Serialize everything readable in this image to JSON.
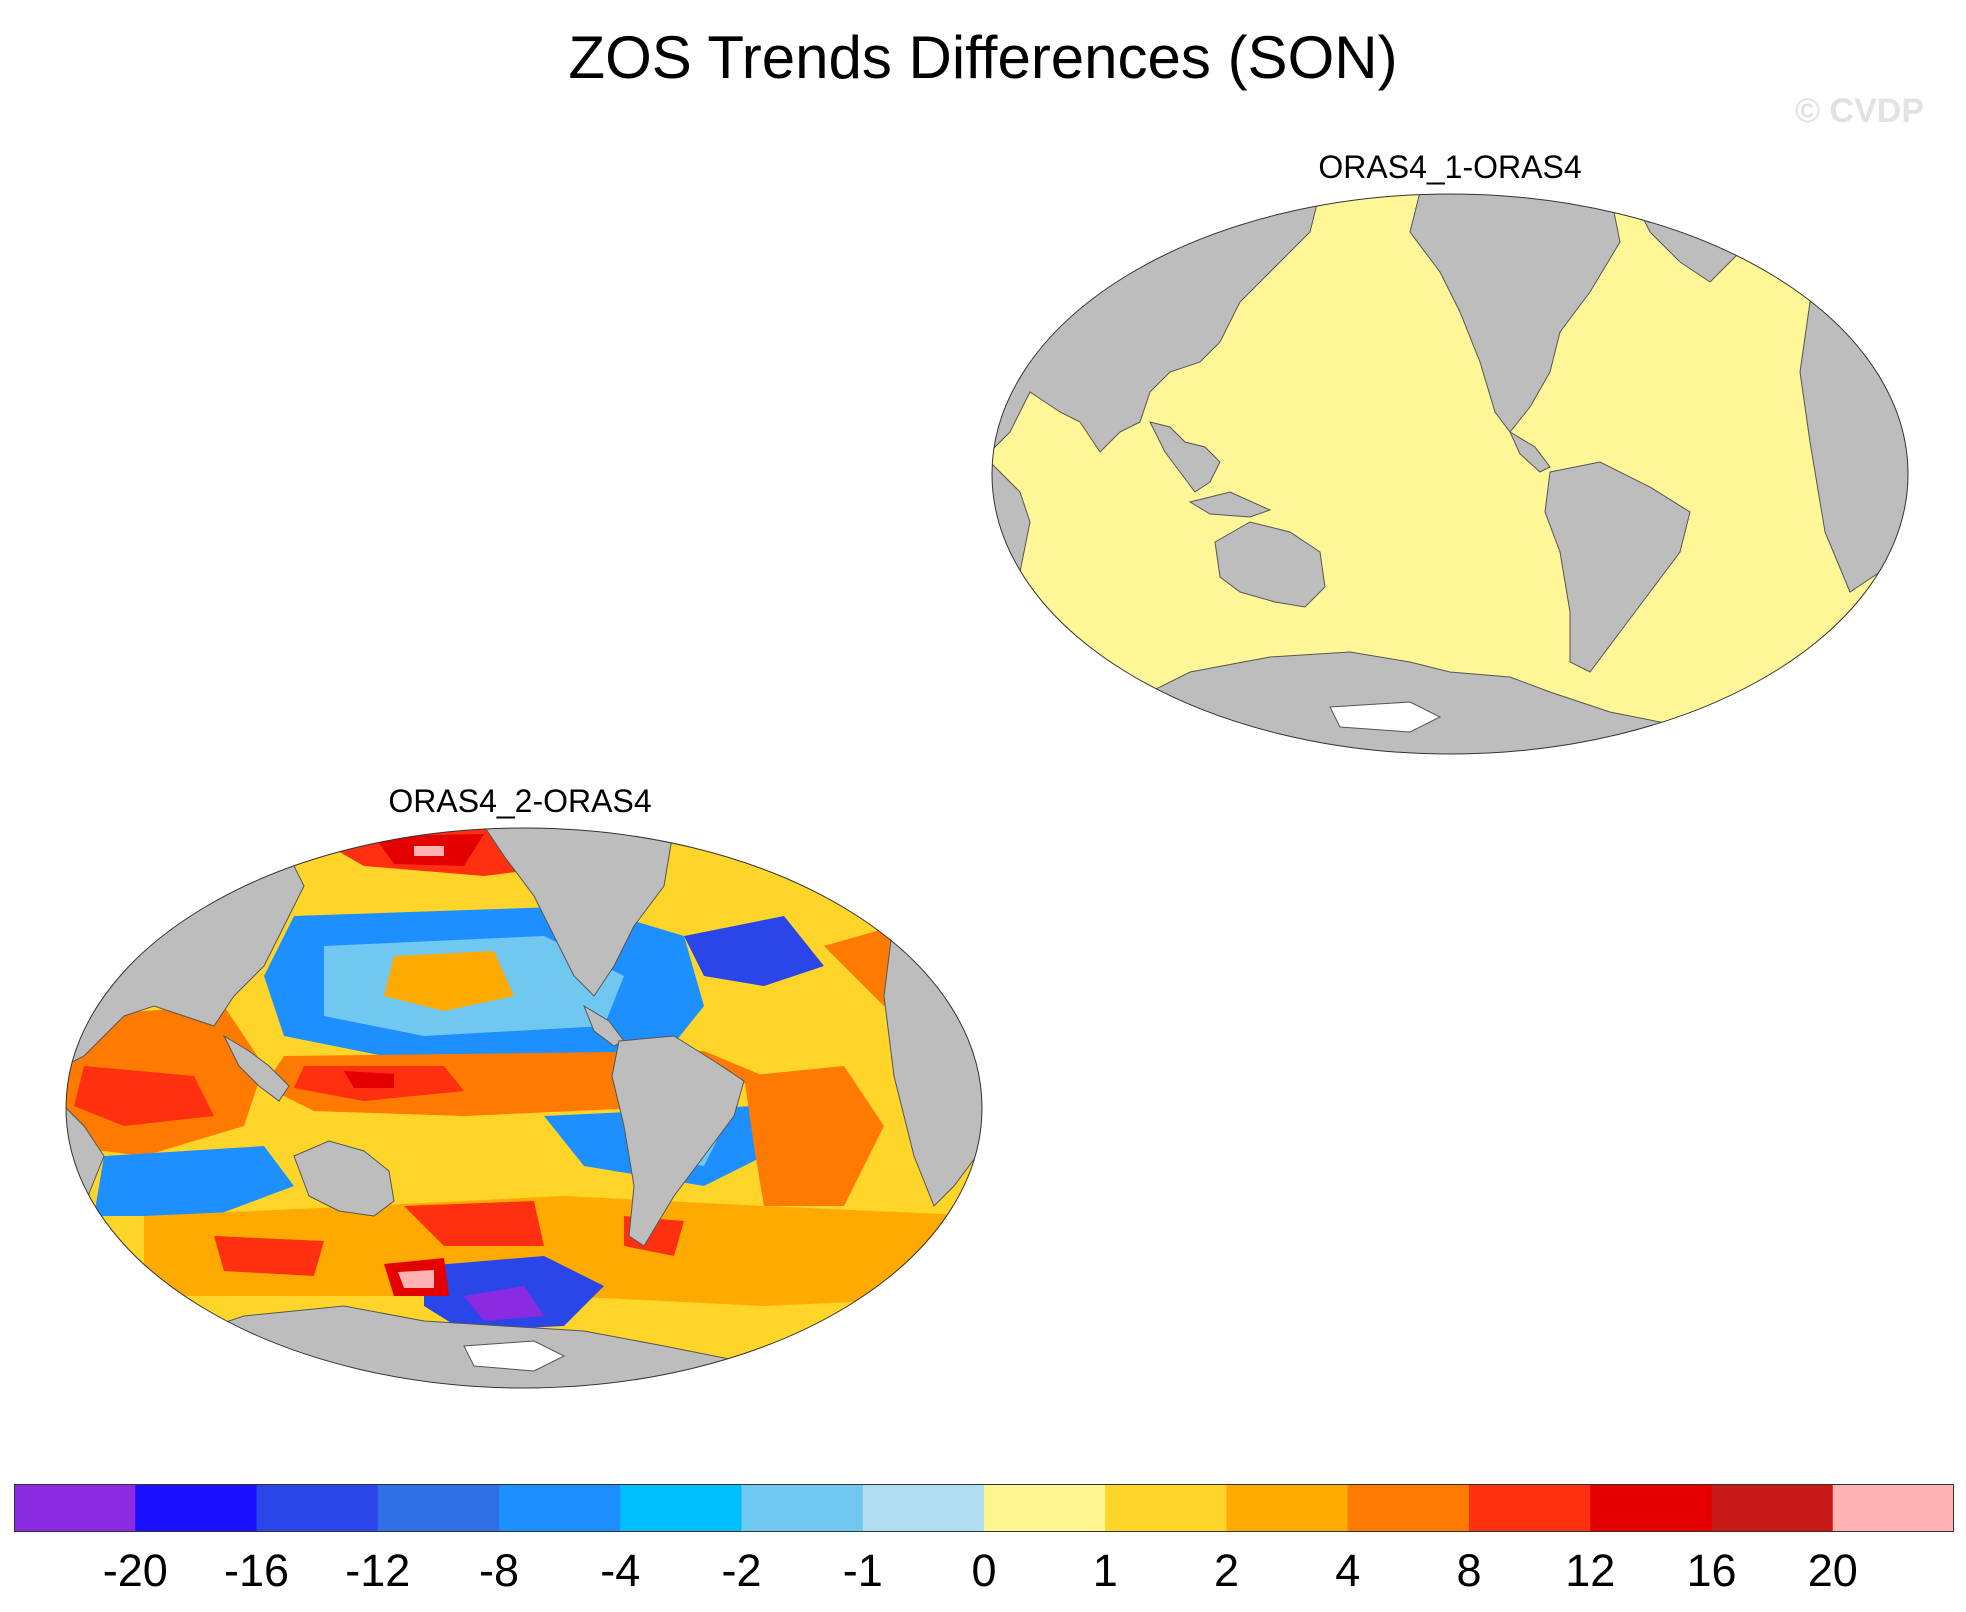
{
  "title": "ZOS Trends Differences (SON)",
  "watermark": "© CVDP",
  "panels": [
    {
      "label": "ORAS4_1-ORAS4",
      "description_color": "#fff797"
    },
    {
      "label": "ORAS4_2-ORAS4"
    }
  ],
  "colors": {
    "land": "#bdbdbd",
    "ocean_uniform": "#fff797",
    "ice": "#ffffff"
  },
  "colorbar": {
    "colors": [
      "#8a2be2",
      "#1a10ff",
      "#2a45e8",
      "#2f6fe3",
      "#1e8fff",
      "#00bfff",
      "#70c8f0",
      "#b0ddf2",
      "#fff590",
      "#ffd52a",
      "#ffaa00",
      "#ff7a00",
      "#ff3010",
      "#e50000",
      "#c81818",
      "#ffb3b3"
    ],
    "labels": [
      "-20",
      "-16",
      "-12",
      "-8",
      "-4",
      "-2",
      "-1",
      "0",
      "1",
      "2",
      "4",
      "8",
      "12",
      "16",
      "20"
    ]
  }
}
